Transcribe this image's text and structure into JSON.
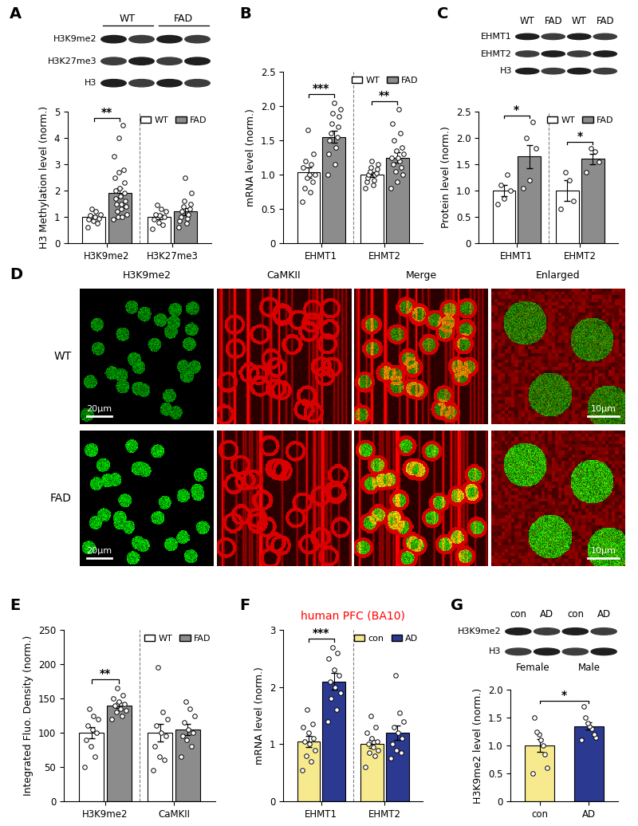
{
  "chart_data": [
    {
      "panel": "A",
      "type": "bar",
      "y_label": "H3 Methylation level (norm.)",
      "categories": [
        "H3K9me2",
        "H3K27me3"
      ],
      "series": [
        {
          "name": "WT",
          "color": "#ffffff",
          "values": [
            1.0,
            1.0
          ],
          "errors": [
            0.07,
            0.09
          ],
          "points": [
            [
              0.62,
              0.75,
              0.85,
              0.9,
              0.95,
              1.0,
              1.05,
              1.1,
              1.2,
              1.3
            ],
            [
              0.55,
              0.7,
              0.8,
              0.9,
              1.0,
              1.05,
              1.1,
              1.2,
              1.3,
              1.45
            ]
          ]
        },
        {
          "name": "FAD",
          "color": "#8c8c8c",
          "values": [
            1.9,
            1.2
          ],
          "errors": [
            0.18,
            0.13
          ],
          "points": [
            [
              0.9,
              1.0,
              1.0,
              1.1,
              1.2,
              1.3,
              1.4,
              1.5,
              1.5,
              1.6,
              1.7,
              1.8,
              1.9,
              2.0,
              2.1,
              2.3,
              2.5,
              2.7,
              2.8,
              3.3,
              4.0,
              4.5
            ],
            [
              0.6,
              0.75,
              0.85,
              0.95,
              1.0,
              1.1,
              1.2,
              1.3,
              1.4,
              1.5,
              1.6,
              1.9,
              2.5
            ]
          ]
        }
      ],
      "significance": [
        "**",
        null
      ],
      "ylim": [
        0,
        5
      ],
      "yticks": [
        0,
        1,
        2,
        3,
        4,
        5
      ],
      "legend": "upper right",
      "blot": {
        "column_groups": [
          "WT",
          "FAD"
        ],
        "lanes_per_group": 2,
        "rows": [
          "H3K9me2",
          "H3K27me3",
          "H3"
        ]
      }
    },
    {
      "panel": "B",
      "type": "bar",
      "y_label": "mRNA level (norm.)",
      "categories": [
        "EHMT1",
        "EHMT2"
      ],
      "series": [
        {
          "name": "WT",
          "color": "#ffffff",
          "values": [
            1.03,
            1.0
          ],
          "errors": [
            0.08,
            0.03
          ],
          "points": [
            [
              0.6,
              0.75,
              0.8,
              0.9,
              0.95,
              1.0,
              1.0,
              1.1,
              1.15,
              1.2,
              1.3,
              1.65
            ],
            [
              0.8,
              0.85,
              0.9,
              0.92,
              0.95,
              1.0,
              1.0,
              1.02,
              1.05,
              1.08,
              1.1,
              1.15,
              1.2
            ]
          ]
        },
        {
          "name": "FAD",
          "color": "#8c8c8c",
          "values": [
            1.55,
            1.25
          ],
          "errors": [
            0.09,
            0.07
          ],
          "points": [
            [
              1.0,
              1.15,
              1.3,
              1.4,
              1.5,
              1.55,
              1.6,
              1.7,
              1.75,
              1.85,
              1.9,
              1.95,
              2.05
            ],
            [
              0.8,
              0.9,
              1.0,
              1.05,
              1.1,
              1.15,
              1.2,
              1.25,
              1.25,
              1.3,
              1.35,
              1.4,
              1.5,
              1.6,
              1.75,
              1.95
            ]
          ]
        }
      ],
      "significance": [
        "***",
        "**"
      ],
      "ylim": [
        0,
        2.5
      ],
      "yticks": [
        0,
        0.5,
        1.0,
        1.5,
        2.0,
        2.5
      ],
      "legend": "upper right"
    },
    {
      "panel": "C",
      "type": "bar",
      "y_label": "Protein level (norm.)",
      "categories": [
        "EHMT1",
        "EHMT2"
      ],
      "series": [
        {
          "name": "WT",
          "color": "#ffffff",
          "values": [
            1.0,
            1.0
          ],
          "errors": [
            0.1,
            0.2
          ],
          "points": [
            [
              0.75,
              0.85,
              1.0,
              1.1,
              1.3
            ],
            [
              0.65,
              0.8,
              1.2,
              1.35
            ]
          ]
        },
        {
          "name": "FAD",
          "color": "#8c8c8c",
          "values": [
            1.65,
            1.6
          ],
          "errors": [
            0.22,
            0.1
          ],
          "points": [
            [
              1.05,
              1.2,
              1.8,
              2.0,
              2.3
            ],
            [
              1.35,
              1.55,
              1.75,
              1.8
            ]
          ]
        }
      ],
      "significance": [
        "*",
        "*"
      ],
      "ylim": [
        0,
        2.5
      ],
      "yticks": [
        0,
        0.5,
        1.0,
        1.5,
        2.0,
        2.5
      ],
      "legend": "upper right",
      "blot": {
        "column_labels": [
          "WT",
          "FAD",
          "WT",
          "FAD"
        ],
        "rows": [
          "EHMT1",
          "EHMT2",
          "H3"
        ]
      }
    },
    {
      "panel": "E",
      "type": "bar",
      "y_label": "Integrated Fluo. Density (norm.)",
      "categories": [
        "H3K9me2",
        "CaMKII"
      ],
      "series": [
        {
          "name": "WT",
          "color": "#ffffff",
          "values": [
            100,
            100
          ],
          "errors": [
            8,
            13
          ],
          "points": [
            [
              50,
              65,
              80,
              90,
              100,
              105,
              110,
              120,
              125,
              135
            ],
            [
              45,
              60,
              65,
              80,
              95,
              100,
              110,
              120,
              130,
              195
            ]
          ]
        },
        {
          "name": "FAD",
          "color": "#8c8c8c",
          "values": [
            140,
            105
          ],
          "errors": [
            4,
            8
          ],
          "points": [
            [
              120,
              125,
              130,
              132,
              135,
              140,
              142,
              145,
              150,
              155,
              165
            ],
            [
              65,
              80,
              90,
              95,
              100,
              105,
              115,
              125,
              135,
              145
            ]
          ]
        }
      ],
      "significance": [
        "**",
        null
      ],
      "ylim": [
        0,
        250
      ],
      "yticks": [
        0,
        50,
        100,
        150,
        200,
        250
      ],
      "legend": "upper right"
    },
    {
      "panel": "F",
      "type": "bar",
      "title": "human PFC (BA10)",
      "y_label": "mRNA level (norm.)",
      "categories": [
        "EHMT1",
        "EHMT2"
      ],
      "series": [
        {
          "name": "con",
          "color": "#f7e98e",
          "values": [
            1.05,
            1.0
          ],
          "errors": [
            0.1,
            0.07
          ],
          "points": [
            [
              0.55,
              0.7,
              0.8,
              0.9,
              1.0,
              1.05,
              1.1,
              1.2,
              1.3,
              1.35,
              1.6
            ],
            [
              0.6,
              0.8,
              0.85,
              0.9,
              0.95,
              1.0,
              1.05,
              1.1,
              1.2,
              1.3,
              1.5
            ]
          ]
        },
        {
          "name": "AD",
          "color": "#2b3990",
          "values": [
            2.1,
            1.2
          ],
          "errors": [
            0.15,
            0.13
          ],
          "points": [
            [
              1.4,
              1.6,
              1.8,
              1.9,
              2.0,
              2.1,
              2.2,
              2.3,
              2.5,
              2.6,
              2.7
            ],
            [
              0.75,
              0.85,
              0.9,
              1.0,
              1.1,
              1.2,
              1.3,
              1.4,
              1.55,
              2.2
            ]
          ]
        }
      ],
      "significance": [
        "***",
        null
      ],
      "ylim": [
        0,
        3
      ],
      "yticks": [
        0,
        1,
        2,
        3
      ],
      "legend": "upper right"
    },
    {
      "panel": "G",
      "type": "bar",
      "y_label": "H3K9me2 level (norm.)",
      "categories": [
        "con",
        "AD"
      ],
      "values": [
        1.0,
        1.35
      ],
      "errors": [
        0.12,
        0.07
      ],
      "colors": [
        "#f7e98e",
        "#2b3990"
      ],
      "points": [
        [
          0.5,
          0.6,
          0.85,
          1.0,
          1.1,
          1.2,
          1.25,
          1.5
        ],
        [
          1.1,
          1.15,
          1.2,
          1.3,
          1.35,
          1.4,
          1.5,
          1.7
        ]
      ],
      "significance": "*",
      "ylim": [
        0,
        2.0
      ],
      "yticks": [
        0,
        0.5,
        1.0,
        1.5,
        2.0
      ],
      "blot": {
        "column_labels": [
          "con",
          "AD",
          "con",
          "AD"
        ],
        "column_groups": [
          "Female",
          "Male"
        ],
        "rows": [
          "H3K9me2",
          "H3"
        ]
      }
    }
  ],
  "images": {
    "panel": "D",
    "columns": [
      "H3K9me2",
      "CaMKII",
      "Merge",
      "Enlarged"
    ],
    "rows": [
      "WT",
      "FAD"
    ],
    "scale_bars": {
      "H3K9me2": "20μm",
      "Enlarged": "10μm"
    }
  }
}
